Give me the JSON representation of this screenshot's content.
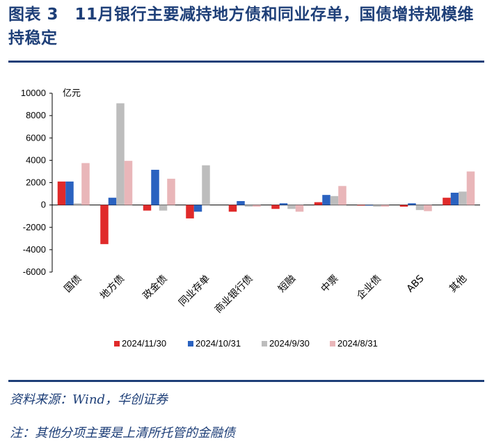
{
  "header": {
    "title": "图表 3　11月银行主要减持地方债和同业存单，国债增持规模维持稳定"
  },
  "footer": {
    "source": "资料来源：Wind，华创证券",
    "note": "注：其他分项主要是上清所托管的金融债"
  },
  "chart_data": {
    "type": "bar",
    "unit_label": "亿元",
    "categories": [
      "国债",
      "地方债",
      "政金债",
      "同业存单",
      "商业银行债",
      "短融",
      "中票",
      "企业债",
      "ABS",
      "其他"
    ],
    "ylim": [
      -6000,
      10000
    ],
    "yticks": [
      10000,
      8000,
      6000,
      4000,
      2000,
      0,
      -2000,
      -4000,
      -6000
    ],
    "ytick_labels": [
      "10000",
      "8000",
      "6000",
      "4000",
      "2000",
      "0",
      "-2000",
      "-4000",
      "-6000"
    ],
    "grid": false,
    "legend_position": "bottom",
    "series": [
      {
        "name": "2024/11/30",
        "color": "#e02a2a",
        "values": [
          2100,
          -3500,
          -500,
          -1200,
          -600,
          -350,
          250,
          -50,
          -150,
          650
        ]
      },
      {
        "name": "2024/10/31",
        "color": "#2a62c0",
        "values": [
          2100,
          650,
          3150,
          -600,
          350,
          150,
          900,
          -50,
          150,
          1100
        ]
      },
      {
        "name": "2024/9/30",
        "color": "#bdbdbd",
        "values": [
          150,
          9100,
          -500,
          3550,
          -150,
          -350,
          800,
          -150,
          -450,
          1200
        ]
      },
      {
        "name": "2024/8/31",
        "color": "#e9b6b9",
        "values": [
          3750,
          3950,
          2350,
          0,
          -150,
          -600,
          1700,
          -150,
          -550,
          3000
        ]
      }
    ]
  }
}
